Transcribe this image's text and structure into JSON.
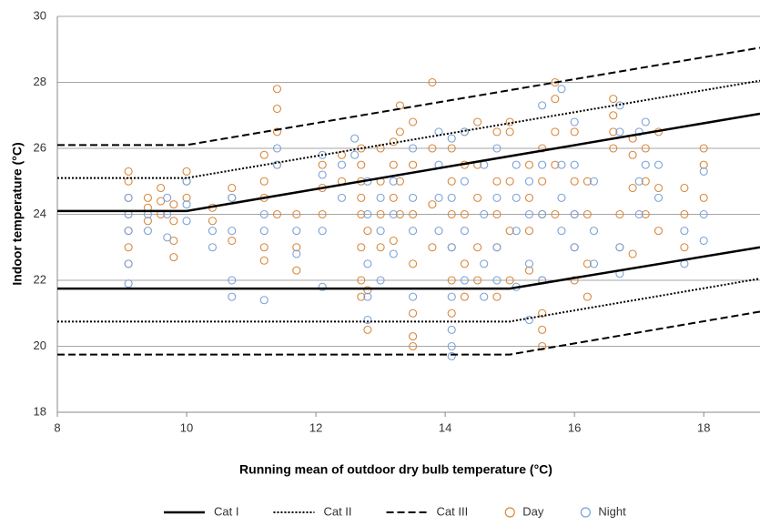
{
  "chart_data": {
    "type": "scatter",
    "x_label": "Running mean of outdoor dry bulb temperature (°C)",
    "y_label": "Indoor  temperature (°C)",
    "xlim": [
      8,
      18.87
    ],
    "xticks": [
      8,
      10,
      12,
      14,
      16,
      18
    ],
    "ylim": [
      18,
      30
    ],
    "yticks": [
      18,
      20,
      22,
      24,
      26,
      28,
      30
    ],
    "grid": true,
    "legend": "bottom",
    "lines": [
      {
        "name": "Cat I",
        "style": "solid",
        "color": "#000000",
        "segments": [
          {
            "x": [
              8,
              10,
              18.87
            ],
            "values": [
              24.1,
              24.1,
              27.05
            ]
          },
          {
            "x": [
              8,
              15,
              18.87
            ],
            "values": [
              21.75,
              21.75,
              23.0
            ]
          }
        ]
      },
      {
        "name": "Cat II",
        "style": "dotted",
        "color": "#000000",
        "segments": [
          {
            "x": [
              8,
              10,
              18.87
            ],
            "values": [
              25.1,
              25.1,
              28.05
            ]
          },
          {
            "x": [
              8,
              15,
              18.87
            ],
            "values": [
              20.75,
              20.75,
              22.05
            ]
          }
        ]
      },
      {
        "name": "Cat III",
        "style": "dashed",
        "color": "#000000",
        "segments": [
          {
            "x": [
              8,
              10,
              18.87
            ],
            "values": [
              26.1,
              26.1,
              29.05
            ]
          },
          {
            "x": [
              8,
              15,
              18.87
            ],
            "values": [
              19.75,
              19.75,
              21.05
            ]
          }
        ]
      }
    ],
    "series": [
      {
        "name": "Day",
        "color": "#d9873a",
        "x": [
          9.1,
          9.1,
          9.1,
          9.1,
          9.1,
          9.1,
          9.1,
          9.4,
          9.4,
          9.4,
          9.6,
          9.6,
          9.6,
          9.8,
          9.8,
          9.8,
          9.8,
          10,
          10,
          10,
          10.4,
          10.4,
          10.7,
          10.7,
          10.7,
          11.2,
          11.2,
          11.2,
          11.2,
          11.2,
          11.4,
          11.4,
          11.4,
          11.4,
          11.4,
          11.7,
          11.7,
          11.7,
          12.1,
          12.1,
          12.1,
          12.4,
          12.4,
          12.7,
          12.7,
          12.7,
          12.7,
          12.7,
          12.7,
          12.7,
          12.7,
          12.8,
          12.8,
          12.8,
          13,
          13,
          13,
          13,
          13.2,
          13.2,
          13.2,
          13.2,
          13.3,
          13.3,
          13.3,
          13.3,
          13.5,
          13.5,
          13.5,
          13.5,
          13.5,
          13.5,
          13.5,
          13.8,
          13.8,
          13.8,
          13.8,
          14.1,
          14.1,
          14.1,
          14.1,
          14.1,
          14.1,
          14.3,
          14.3,
          14.3,
          14.3,
          14.3,
          14.5,
          14.5,
          14.5,
          14.5,
          14.5,
          14.8,
          14.8,
          14.8,
          14.8,
          14.8,
          15,
          15,
          15,
          15,
          15,
          15.3,
          15.3,
          15.3,
          15.3,
          15.5,
          15.5,
          15.5,
          15.5,
          15.5,
          15.5,
          15.5,
          15.7,
          15.7,
          15.7,
          15.7,
          15.7,
          16,
          16,
          16,
          16,
          16,
          16.2,
          16.2,
          16.2,
          16.2,
          16.6,
          16.6,
          16.6,
          16.6,
          16.7,
          16.7,
          16.9,
          16.9,
          16.9,
          16.9,
          17.1,
          17.1,
          17.1,
          17.3,
          17.3,
          17.3,
          17.7,
          17.7,
          17.7,
          18,
          18,
          18
        ],
        "values": [
          22.5,
          23,
          23.5,
          24,
          24.5,
          25,
          25.3,
          23.8,
          24.2,
          24.5,
          24,
          24.4,
          24.8,
          22.7,
          23.2,
          23.8,
          24.3,
          24.5,
          25,
          25.3,
          23.8,
          24.2,
          23.2,
          24.5,
          24.8,
          22.6,
          23,
          24.5,
          25,
          25.8,
          24,
          25.5,
          26.5,
          27.2,
          27.8,
          22.3,
          23,
          24,
          24,
          24.8,
          25.5,
          25,
          25.8,
          21.5,
          22,
          23,
          24,
          24.5,
          25,
          25.5,
          26,
          20.5,
          21.7,
          23.5,
          23,
          24,
          25,
          26,
          23.2,
          24.5,
          25.5,
          26.2,
          24,
          25,
          26.5,
          27.3,
          20,
          20.3,
          21,
          22.5,
          24,
          25.5,
          26.8,
          28,
          26,
          24.3,
          23,
          21,
          22,
          23,
          24,
          25,
          26,
          21.5,
          22.5,
          24,
          25.5,
          26.5,
          22,
          23,
          24.5,
          25.5,
          26.8,
          21.5,
          23,
          24,
          25,
          26.5,
          22,
          23.5,
          25,
          26.5,
          26.8,
          22.3,
          23.5,
          24.5,
          25.5,
          20,
          20.5,
          21,
          22,
          24,
          25,
          26,
          24,
          25.5,
          26.5,
          27.5,
          28,
          22,
          23,
          24,
          25,
          26.5,
          21.5,
          22.5,
          24,
          25,
          26,
          26.5,
          27,
          27.5,
          23,
          24,
          22.8,
          24.8,
          25.8,
          26.3,
          24,
          25,
          26,
          23.5,
          24.8,
          26.5,
          23,
          24,
          24.8,
          24.5,
          25.5,
          26
        ]
      },
      {
        "name": "Night",
        "color": "#7ba1d8",
        "x": [
          9.1,
          9.1,
          9.1,
          9.1,
          9.1,
          9.4,
          9.4,
          9.7,
          9.7,
          9.7,
          10,
          10,
          10,
          10.4,
          10.4,
          10.7,
          10.7,
          10.7,
          10.7,
          11.2,
          11.2,
          11.2,
          11.4,
          11.4,
          11.7,
          11.7,
          12.1,
          12.1,
          12.1,
          12.1,
          12.4,
          12.4,
          12.6,
          12.6,
          12.8,
          12.8,
          12.8,
          12.8,
          12.8,
          13,
          13,
          13,
          13.2,
          13.2,
          13.2,
          13.5,
          13.5,
          13.5,
          13.5,
          13.9,
          13.9,
          13.9,
          13.9,
          14.1,
          14.1,
          14.1,
          14.1,
          14.1,
          14.1,
          14.1,
          14.3,
          14.3,
          14.3,
          14.3,
          14.6,
          14.6,
          14.6,
          14.6,
          14.8,
          14.8,
          14.8,
          14.8,
          15.1,
          15.1,
          15.1,
          15.1,
          15.3,
          15.3,
          15.3,
          15.3,
          15.5,
          15.5,
          15.5,
          15.5,
          15.8,
          15.8,
          15.8,
          15.8,
          16,
          16,
          16,
          16,
          16.3,
          16.3,
          16.3,
          16.7,
          16.7,
          16.7,
          16.7,
          17,
          17,
          17,
          17.1,
          17.1,
          17.3,
          17.3,
          17.7,
          17.7,
          18,
          18,
          18
        ],
        "values": [
          21.9,
          22.5,
          23.5,
          24,
          24.5,
          23.5,
          24,
          23.3,
          24,
          24.5,
          23.8,
          24.3,
          25,
          23,
          23.5,
          21.5,
          22,
          23.5,
          24.5,
          21.4,
          23.5,
          24,
          25.5,
          26,
          22.8,
          23.5,
          21.8,
          23.5,
          25.2,
          25.8,
          24.5,
          25.5,
          25.8,
          26.3,
          20.8,
          21.5,
          22.5,
          24,
          25,
          22,
          23.5,
          24.5,
          22.8,
          24,
          25,
          21.5,
          23.5,
          24.5,
          26,
          23.5,
          24.5,
          25.5,
          26.5,
          19.7,
          20,
          20.5,
          21.5,
          23,
          24.5,
          26.3,
          22,
          23.5,
          25,
          26.5,
          21.5,
          22.5,
          24,
          25.5,
          22,
          23,
          24.5,
          26,
          21.8,
          23.5,
          24.5,
          25.5,
          20.8,
          22.5,
          24,
          25,
          22,
          24,
          25.5,
          27.3,
          23.5,
          24.5,
          25.5,
          27.8,
          23,
          24,
          25.5,
          26.8,
          22.5,
          23.5,
          25,
          22.2,
          23,
          26.5,
          27.3,
          24,
          25,
          26.5,
          25.5,
          26.8,
          24.5,
          25.5,
          22.5,
          23.5,
          23.2,
          24,
          25.3
        ]
      }
    ]
  }
}
